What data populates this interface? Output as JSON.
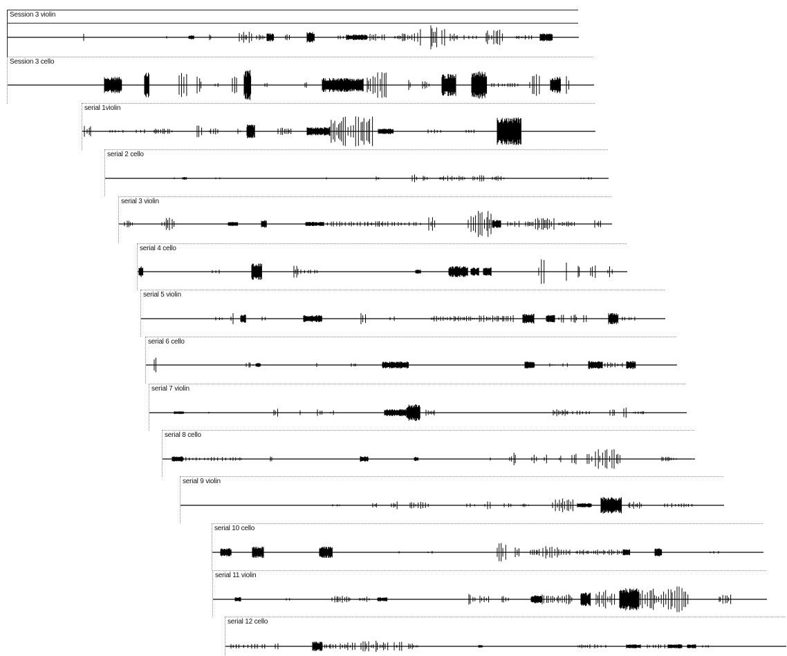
{
  "tracks": [
    {
      "name": "Session 3 violin"
    },
    {
      "name": "Session 3 cello"
    },
    {
      "name": "serial 1violin"
    },
    {
      "name": "serial 2 cello"
    },
    {
      "name": "serial 3 violin"
    },
    {
      "name": "serial 4 cello"
    },
    {
      "name": "serial 5 violin"
    },
    {
      "name": "serial 6 cello"
    },
    {
      "name": "serial 7 violin"
    },
    {
      "name": "serial 8 cello"
    },
    {
      "name": "serial 9 violin"
    },
    {
      "name": "serial 10 cello"
    },
    {
      "name": "serial 11 violin"
    },
    {
      "name": "serial 12 cello"
    }
  ]
}
